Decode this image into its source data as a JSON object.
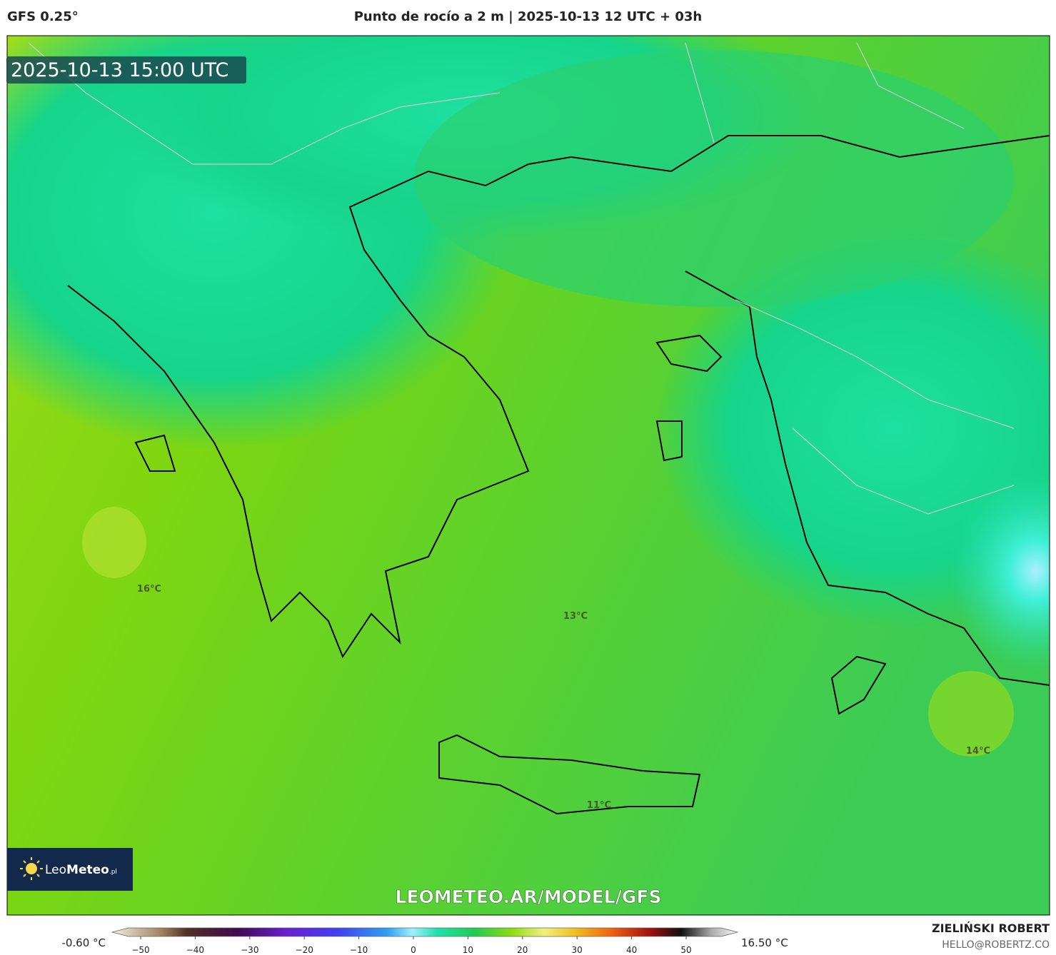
{
  "header": {
    "model": "GFS 0.25°",
    "title": "Punto de rocío a 2 m | 2025-10-13 12 UTC + 03h"
  },
  "map": {
    "timestamp": "2025-10-13 15:00 UTC",
    "labels": [
      "16°C",
      "13°C",
      "11°C",
      "14°C"
    ],
    "watermark": "LEOMETEO.AR/MODEL/GFS",
    "logo": {
      "name": "Leo",
      "name_bold": "Meteo",
      "suffix": ".pl"
    }
  },
  "colorbar": {
    "min": "-0.60 °C",
    "max": "16.50 °C",
    "ticks": [
      "−50",
      "−40",
      "−30",
      "−20",
      "−10",
      "0",
      "10",
      "20",
      "30",
      "40",
      "50"
    ]
  },
  "footer": {
    "author": "ZIELIŃSKI ROBERT",
    "email": "HELLO@ROBERTZ.CO"
  }
}
